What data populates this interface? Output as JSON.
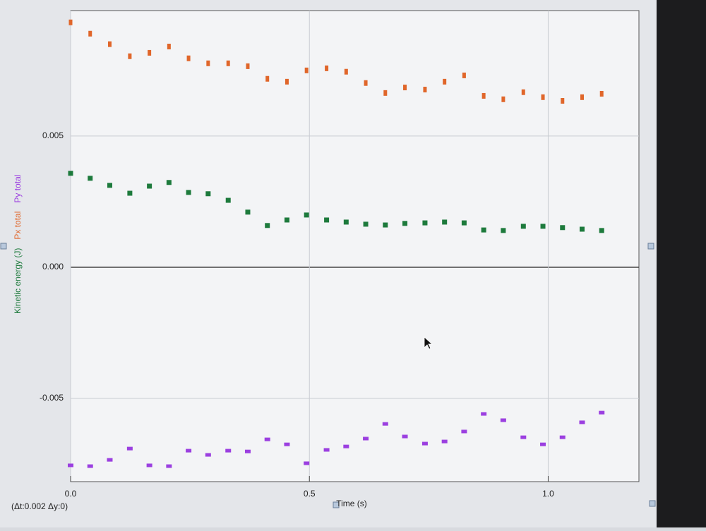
{
  "chart_data": {
    "type": "scatter",
    "xlabel": "Time (s)",
    "annotation": "(Δt:0.002 Δy:0)",
    "x": [
      0,
      0.041,
      0.082,
      0.124,
      0.165,
      0.206,
      0.247,
      0.288,
      0.33,
      0.371,
      0.412,
      0.453,
      0.494,
      0.536,
      0.577,
      0.618,
      0.659,
      0.7,
      0.742,
      0.783,
      0.824,
      0.865,
      0.906,
      0.948,
      0.989,
      1.03,
      1.071,
      1.112
    ],
    "series": [
      {
        "name": "Kinetic energy (J)",
        "color": "#1d7a3c",
        "values": [
          0.00358,
          0.00339,
          0.00312,
          0.00282,
          0.00309,
          0.00323,
          0.00285,
          0.0028,
          0.00255,
          0.0021,
          0.00159,
          0.0018,
          0.00199,
          0.0018,
          0.00172,
          0.00164,
          0.00161,
          0.00167,
          0.00169,
          0.00172,
          0.00169,
          0.00142,
          0.0014,
          0.00156,
          0.00156,
          0.00151,
          0.00145,
          0.0014
        ]
      },
      {
        "name": "Px total",
        "color": "#e0662a",
        "values": [
          0.00933,
          0.0089,
          0.0085,
          0.00804,
          0.00817,
          0.00841,
          0.00796,
          0.00777,
          0.00777,
          0.00766,
          0.00718,
          0.00707,
          0.0075,
          0.00758,
          0.00745,
          0.00702,
          0.00664,
          0.00685,
          0.00677,
          0.00707,
          0.00731,
          0.00653,
          0.0064,
          0.00667,
          0.00648,
          0.00634,
          0.00648,
          0.00661
        ]
      },
      {
        "name": "Py total",
        "color": "#9b3fe0",
        "values": [
          -0.00755,
          -0.00758,
          -0.00734,
          -0.00691,
          -0.00755,
          -0.00758,
          -0.00699,
          -0.00715,
          -0.00699,
          -0.00702,
          -0.00656,
          -0.00675,
          -0.00747,
          -0.00696,
          -0.00683,
          -0.00653,
          -0.00597,
          -0.00645,
          -0.00672,
          -0.00664,
          -0.00626,
          -0.00559,
          -0.00583,
          -0.00648,
          -0.00675,
          -0.00648,
          -0.00591,
          -0.00554
        ]
      }
    ],
    "xlim": [
      0,
      1.19
    ],
    "ylim": [
      -0.00817,
      0.00978
    ],
    "xticks": [
      {
        "value": 0,
        "label": "0.0"
      },
      0.5,
      {
        "value": 1,
        "label": "1.0"
      }
    ],
    "yticks": [
      0.005,
      {
        "value": 0,
        "label": "0.000"
      },
      -0.005
    ],
    "grid": true
  }
}
